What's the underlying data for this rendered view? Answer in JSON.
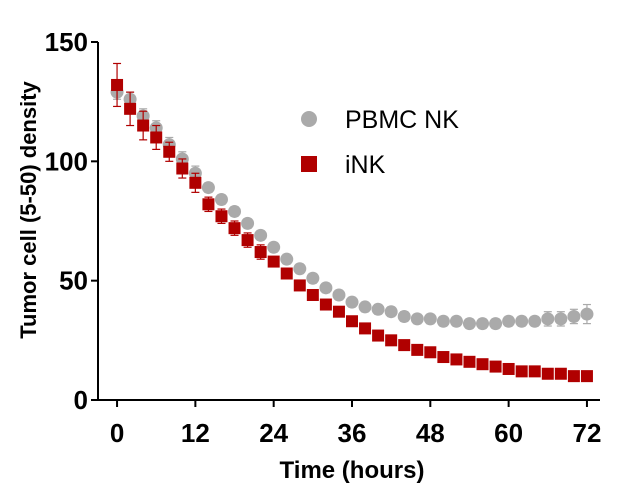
{
  "chart_data": {
    "type": "scatter",
    "xlabel": "Time (hours)",
    "ylabel": "Tumor cell (5-50) density",
    "xlim": [
      -2,
      74
    ],
    "ylim": [
      0,
      150
    ],
    "xticks": [
      "0",
      "12",
      "24",
      "36",
      "48",
      "60",
      "72"
    ],
    "yticks": [
      "0",
      "50",
      "100",
      "150"
    ],
    "grid": false,
    "legend_position": "top-right",
    "series": [
      {
        "name": "PBMC NK",
        "color": "#aaaaaa",
        "marker": "circle",
        "x": [
          0,
          2,
          4,
          6,
          8,
          10,
          12,
          14,
          16,
          18,
          20,
          22,
          24,
          26,
          28,
          30,
          32,
          34,
          36,
          38,
          40,
          42,
          44,
          46,
          48,
          50,
          52,
          54,
          56,
          58,
          60,
          62,
          64,
          66,
          68,
          70,
          72
        ],
        "y": [
          129,
          126,
          119,
          114,
          107,
          101,
          95,
          89,
          84,
          79,
          74,
          69,
          64,
          59,
          55,
          51,
          47,
          44,
          41,
          39,
          38,
          37,
          35,
          34,
          34,
          33,
          33,
          32,
          32,
          32,
          33,
          33,
          33,
          34,
          34,
          35,
          36
        ],
        "err": [
          3,
          3,
          3,
          3,
          3,
          3,
          3,
          2,
          2,
          2,
          2,
          2,
          2,
          2,
          2,
          2,
          2,
          2,
          2,
          2,
          2,
          2,
          2,
          2,
          2,
          2,
          2,
          2,
          2,
          2,
          2,
          2,
          2,
          3,
          3,
          3,
          4
        ]
      },
      {
        "name": "iNK",
        "color": "#b00000",
        "marker": "square",
        "x": [
          0,
          2,
          4,
          6,
          8,
          10,
          12,
          14,
          16,
          18,
          20,
          22,
          24,
          26,
          28,
          30,
          32,
          34,
          36,
          38,
          40,
          42,
          44,
          46,
          48,
          50,
          52,
          54,
          56,
          58,
          60,
          62,
          64,
          66,
          68,
          70,
          72
        ],
        "y": [
          132,
          122,
          115,
          110,
          104,
          97,
          91,
          82,
          77,
          72,
          67,
          62,
          58,
          53,
          48,
          44,
          40,
          37,
          33,
          30,
          27,
          25,
          23,
          21,
          20,
          18,
          17,
          16,
          15,
          14,
          13,
          12,
          12,
          11,
          11,
          10,
          10
        ],
        "err": [
          9,
          7,
          6,
          5,
          4,
          4,
          4,
          3,
          3,
          3,
          3,
          3,
          2,
          2,
          2,
          2,
          2,
          2,
          2,
          2,
          2,
          2,
          2,
          2,
          2,
          2,
          2,
          2,
          2,
          2,
          2,
          2,
          2,
          2,
          2,
          2,
          2
        ]
      }
    ]
  }
}
